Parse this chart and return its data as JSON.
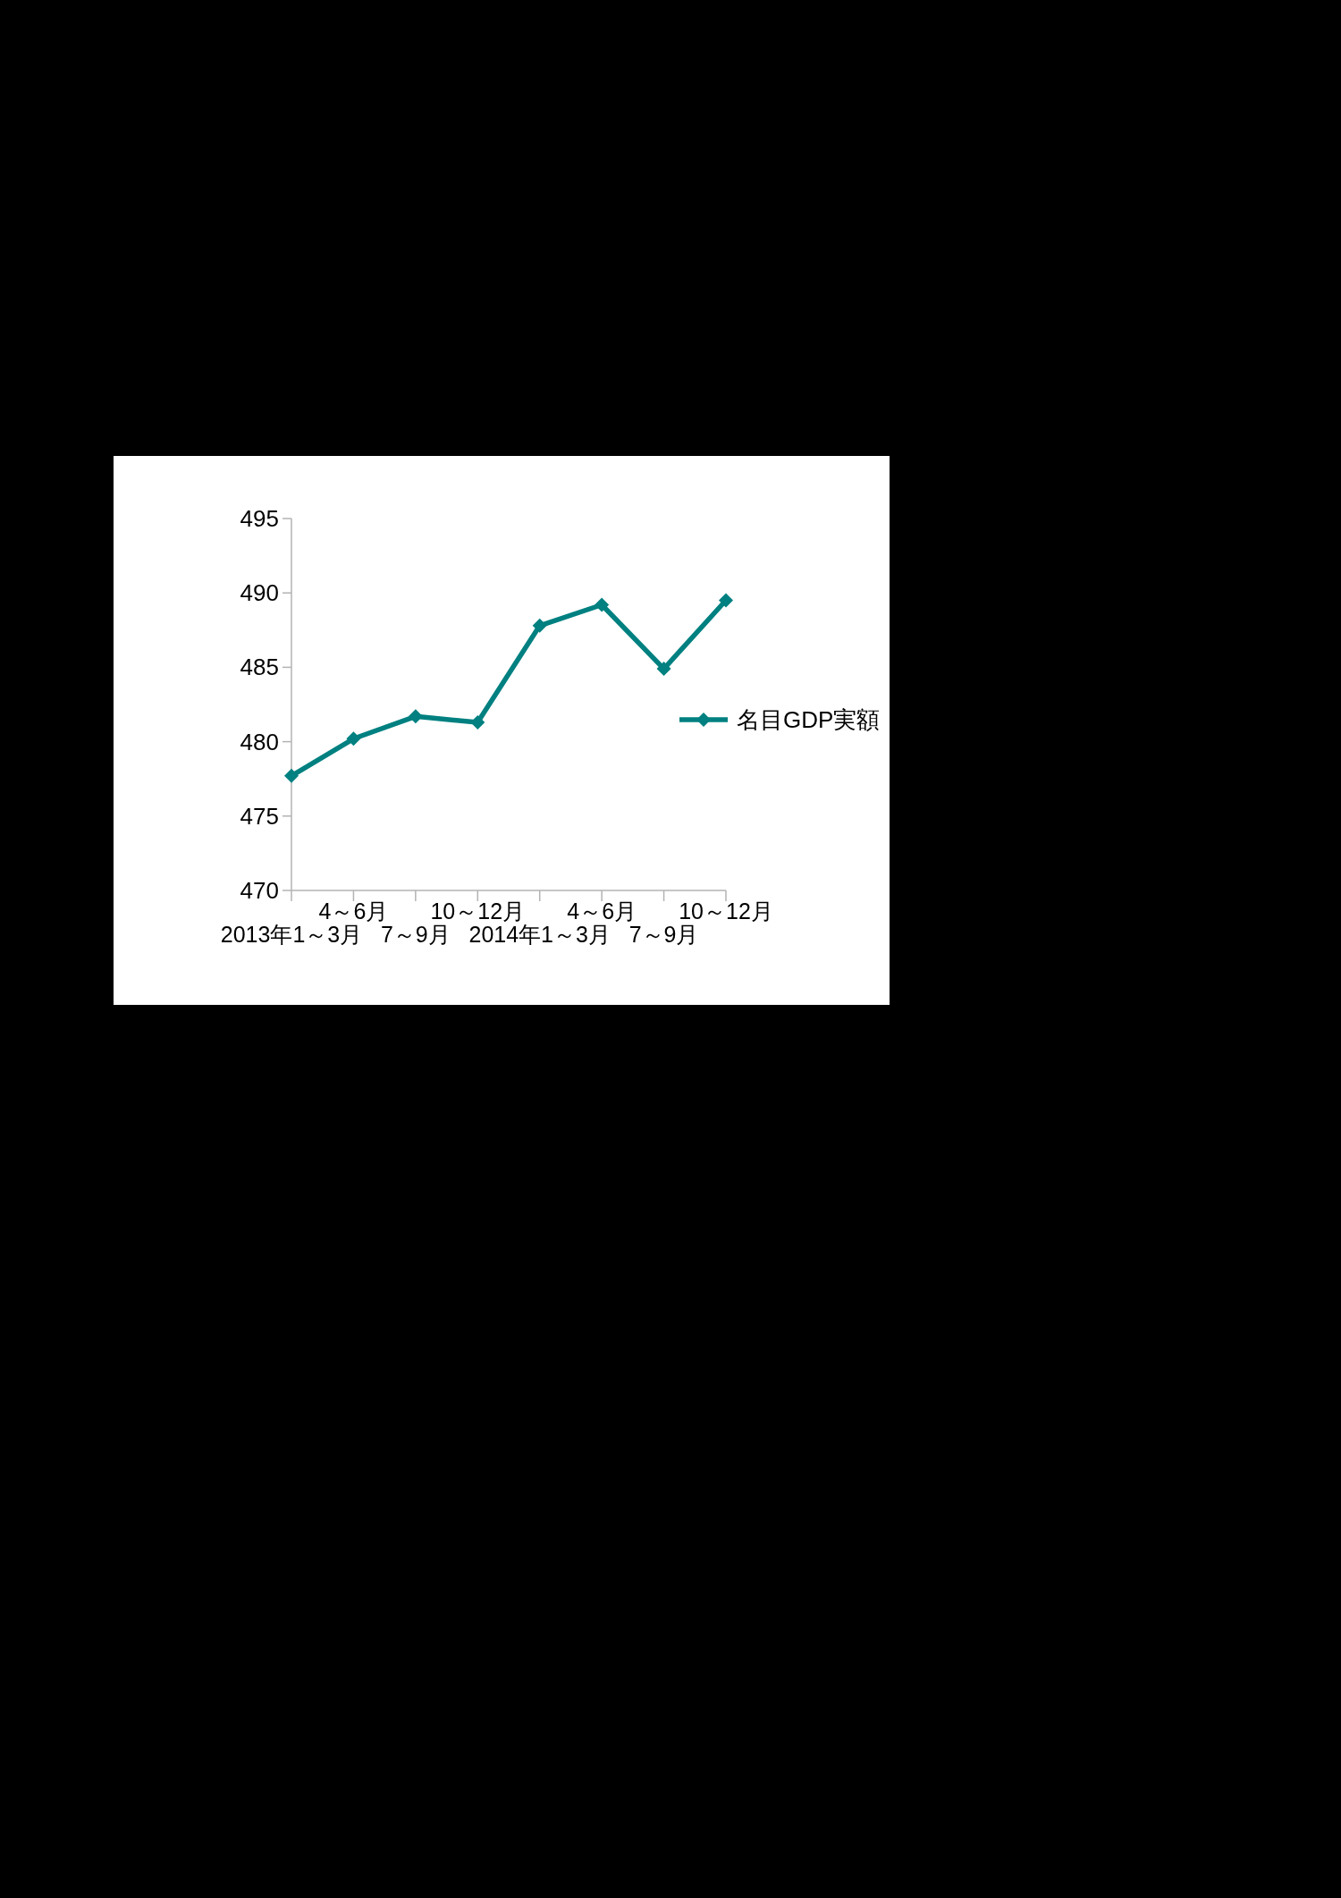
{
  "chart_data": {
    "type": "line",
    "categories": [
      "2013年1～3月",
      "4～6月",
      "7～9月",
      "10～12月",
      "2014年1～3月",
      "4～6月",
      "7～9月",
      "10～12月"
    ],
    "series": [
      {
        "name": "名目GDP実額",
        "color": "#008080",
        "values": [
          477.7,
          480.2,
          481.7,
          481.3,
          487.8,
          489.2,
          484.9,
          489.5
        ]
      }
    ],
    "ylim": [
      470,
      495
    ],
    "yticks": [
      470,
      475,
      480,
      485,
      490,
      495
    ],
    "legend": "right",
    "marker": "diamond",
    "grid": false
  }
}
